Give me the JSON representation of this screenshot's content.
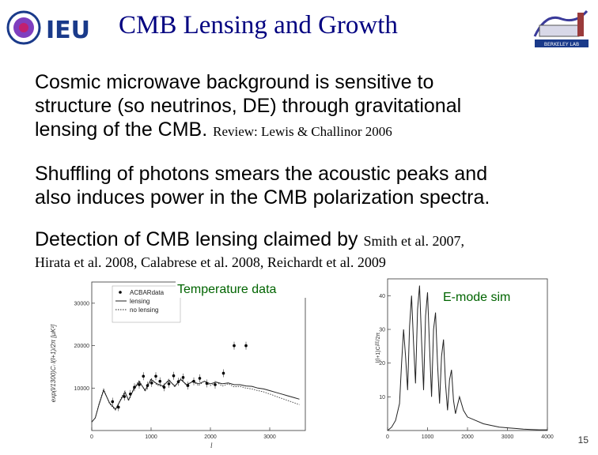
{
  "logo_left": {
    "text": "IEU"
  },
  "logo_right": {
    "text": "BERKELEY LAB"
  },
  "title": "CMB Lensing and Growth",
  "p1": {
    "line1": "Cosmic microwave background is sensitive to",
    "line2": "structure (so neutrinos, DE) through gravitational",
    "line3": "lensing of the CMB.",
    "ref": "Review: Lewis & Challinor 2006"
  },
  "p2": {
    "line1": "Shuffling of photons smears the acoustic peaks and",
    "line2": "also induces power in the CMB polarization spectra."
  },
  "p3": {
    "line1": "Detection of CMB lensing claimed by",
    "ref1": "Smith et al. 2007,",
    "line2": "Hirata et al. 2008, Calabrese et al. 2008, Reichardt et al. 2009"
  },
  "slide_number": "15",
  "chart_data": [
    {
      "type": "line",
      "title": "Temperature data",
      "xlabel": "l",
      "ylabel": "exp(l/1300)Cₗ l(l+1)/2π [μK²]",
      "xlim": [
        0,
        3600
      ],
      "ylim": [
        0,
        35000
      ],
      "xticks": [
        0,
        1000,
        2000,
        3000
      ],
      "yticks": [
        10000,
        20000,
        30000
      ],
      "legend": {
        "position": "top-left",
        "entries": [
          "ACBARdata",
          "lensing",
          "no lensing"
        ]
      },
      "series": [
        {
          "name": "lensing",
          "style": "solid",
          "x": [
            0,
            60,
            120,
            200,
            300,
            400,
            500,
            560,
            620,
            700,
            800,
            900,
            1000,
            1100,
            1200,
            1300,
            1400,
            1500,
            1600,
            1700,
            1800,
            1900,
            2000,
            2100,
            2200,
            2300,
            2400,
            2500,
            2600,
            2700,
            2800,
            2900,
            3000,
            3100,
            3200,
            3300,
            3400,
            3500
          ],
          "values": [
            2000,
            3000,
            6000,
            9500,
            6500,
            5000,
            7500,
            9000,
            7200,
            9500,
            11500,
            9500,
            12000,
            11000,
            10500,
            11800,
            10500,
            12000,
            10800,
            11500,
            11000,
            11600,
            11000,
            11400,
            11000,
            11200,
            10800,
            10800,
            10500,
            10400,
            10000,
            9800,
            9400,
            9000,
            8600,
            8200,
            7800,
            7400
          ]
        },
        {
          "name": "no lensing",
          "style": "dotted",
          "x": [
            0,
            60,
            120,
            200,
            300,
            400,
            500,
            560,
            620,
            700,
            800,
            900,
            1000,
            1100,
            1200,
            1300,
            1400,
            1500,
            1600,
            1700,
            1800,
            1900,
            2000,
            2100,
            2200,
            2300,
            2400,
            2500,
            2600,
            2700,
            2800,
            2900,
            3000,
            3100,
            3200,
            3300,
            3400,
            3500
          ],
          "values": [
            2000,
            3000,
            6200,
            9800,
            6300,
            4800,
            7800,
            9300,
            7000,
            9800,
            11800,
            9200,
            12300,
            10700,
            10300,
            12100,
            10200,
            12300,
            10500,
            11700,
            10600,
            11700,
            10600,
            11400,
            10500,
            11000,
            10300,
            10400,
            10000,
            9800,
            9400,
            9100,
            8600,
            8100,
            7600,
            7100,
            6600,
            6100
          ]
        },
        {
          "name": "ACBARdata",
          "style": "points",
          "x": [
            350,
            450,
            550,
            650,
            720,
            800,
            870,
            940,
            1010,
            1080,
            1150,
            1220,
            1300,
            1380,
            1460,
            1540,
            1620,
            1720,
            1820,
            1940,
            2080,
            2220,
            2400,
            2600
          ],
          "values": [
            6800,
            5500,
            8000,
            8600,
            10200,
            10800,
            12800,
            10600,
            11200,
            12800,
            11600,
            10200,
            11000,
            12900,
            11500,
            12500,
            10600,
            11600,
            12300,
            11100,
            10800,
            13500,
            20000,
            20000
          ]
        }
      ]
    },
    {
      "type": "line",
      "title": "E-mode sim",
      "xlabel": "",
      "ylabel": "l(l+1)Cₗᴱᴱ/2π",
      "xlim": [
        0,
        4000
      ],
      "ylim": [
        0,
        45
      ],
      "xticks": [
        0,
        1000,
        2000,
        3000,
        4000
      ],
      "yticks": [
        10,
        20,
        30,
        40
      ],
      "series": [
        {
          "name": "",
          "style": "solid",
          "x": [
            0,
            100,
            200,
            300,
            350,
            400,
            450,
            500,
            550,
            600,
            650,
            700,
            750,
            800,
            850,
            900,
            950,
            1000,
            1050,
            1100,
            1150,
            1200,
            1250,
            1300,
            1350,
            1400,
            1450,
            1500,
            1550,
            1600,
            1650,
            1700,
            1800,
            1900,
            2000,
            2200,
            2400,
            2600,
            2800,
            3000,
            3200,
            3400,
            3600,
            3800,
            4000
          ],
          "values": [
            0,
            1,
            3,
            8,
            20,
            30,
            22,
            12,
            31,
            40,
            26,
            14,
            36,
            43,
            27,
            12,
            34,
            41,
            25,
            10,
            30,
            35,
            20,
            8,
            22,
            27,
            14,
            6,
            15,
            18,
            9,
            5,
            10,
            6,
            4,
            3,
            2,
            1.5,
            1,
            0.8,
            0.6,
            0.4,
            0.3,
            0.2,
            0.2
          ]
        }
      ]
    }
  ]
}
